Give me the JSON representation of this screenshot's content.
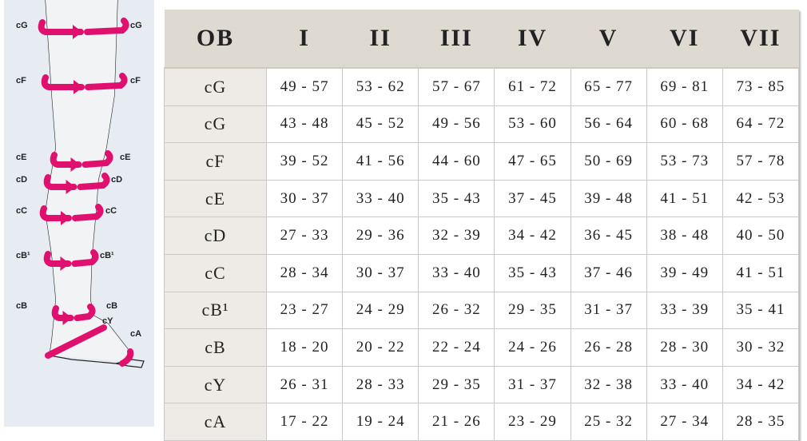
{
  "diagram": {
    "labels": [
      "cG",
      "cF",
      "cE",
      "cD",
      "cC",
      "cB¹",
      "cB",
      "cY",
      "cA"
    ],
    "accent_color": "#e0106e"
  },
  "table": {
    "headers": [
      "OB",
      "I",
      "II",
      "III",
      "IV",
      "V",
      "VI",
      "VII"
    ],
    "rows": [
      {
        "label": "cG",
        "values": [
          "49 - 57",
          "53 - 62",
          "57 - 67",
          "61 - 72",
          "65 - 77",
          "69 - 81",
          "73 - 85"
        ]
      },
      {
        "label": "cG",
        "values": [
          "43 - 48",
          "45 - 52",
          "49 - 56",
          "53 - 60",
          "56 - 64",
          "60 - 68",
          "64 - 72"
        ]
      },
      {
        "label": "cF",
        "values": [
          "39 - 52",
          "41 - 56",
          "44 - 60",
          "47 - 65",
          "50 - 69",
          "53 - 73",
          "57 - 78"
        ]
      },
      {
        "label": "cE",
        "values": [
          "30 - 37",
          "33 - 40",
          "35 - 43",
          "37 - 45",
          "39 - 48",
          "41 - 51",
          "42 - 53"
        ]
      },
      {
        "label": "cD",
        "values": [
          "27 - 33",
          "29 - 36",
          "32 - 39",
          "34 - 42",
          "36 - 45",
          "38 - 48",
          "40 - 50"
        ]
      },
      {
        "label": "cC",
        "values": [
          "28 - 34",
          "30 - 37",
          "33 - 40",
          "35 - 43",
          "37 - 46",
          "39 - 49",
          "41 - 51"
        ]
      },
      {
        "label": "cB¹",
        "values": [
          "23 - 27",
          "24 - 29",
          "26 - 32",
          "29 - 35",
          "31 - 37",
          "33 - 39",
          "35 - 41"
        ]
      },
      {
        "label": "cB",
        "values": [
          "18 - 20",
          "20 - 22",
          "22 - 24",
          "24 - 26",
          "26 - 28",
          "28 - 30",
          "30 - 32"
        ]
      },
      {
        "label": "cY",
        "values": [
          "26 - 31",
          "28 - 33",
          "29 - 35",
          "31 - 37",
          "32 - 38",
          "33 - 40",
          "34 - 42"
        ]
      },
      {
        "label": "cA",
        "values": [
          "17 - 22",
          "19 - 24",
          "21 - 26",
          "23 - 29",
          "25 - 32",
          "27 - 34",
          "28 - 35"
        ]
      }
    ]
  }
}
